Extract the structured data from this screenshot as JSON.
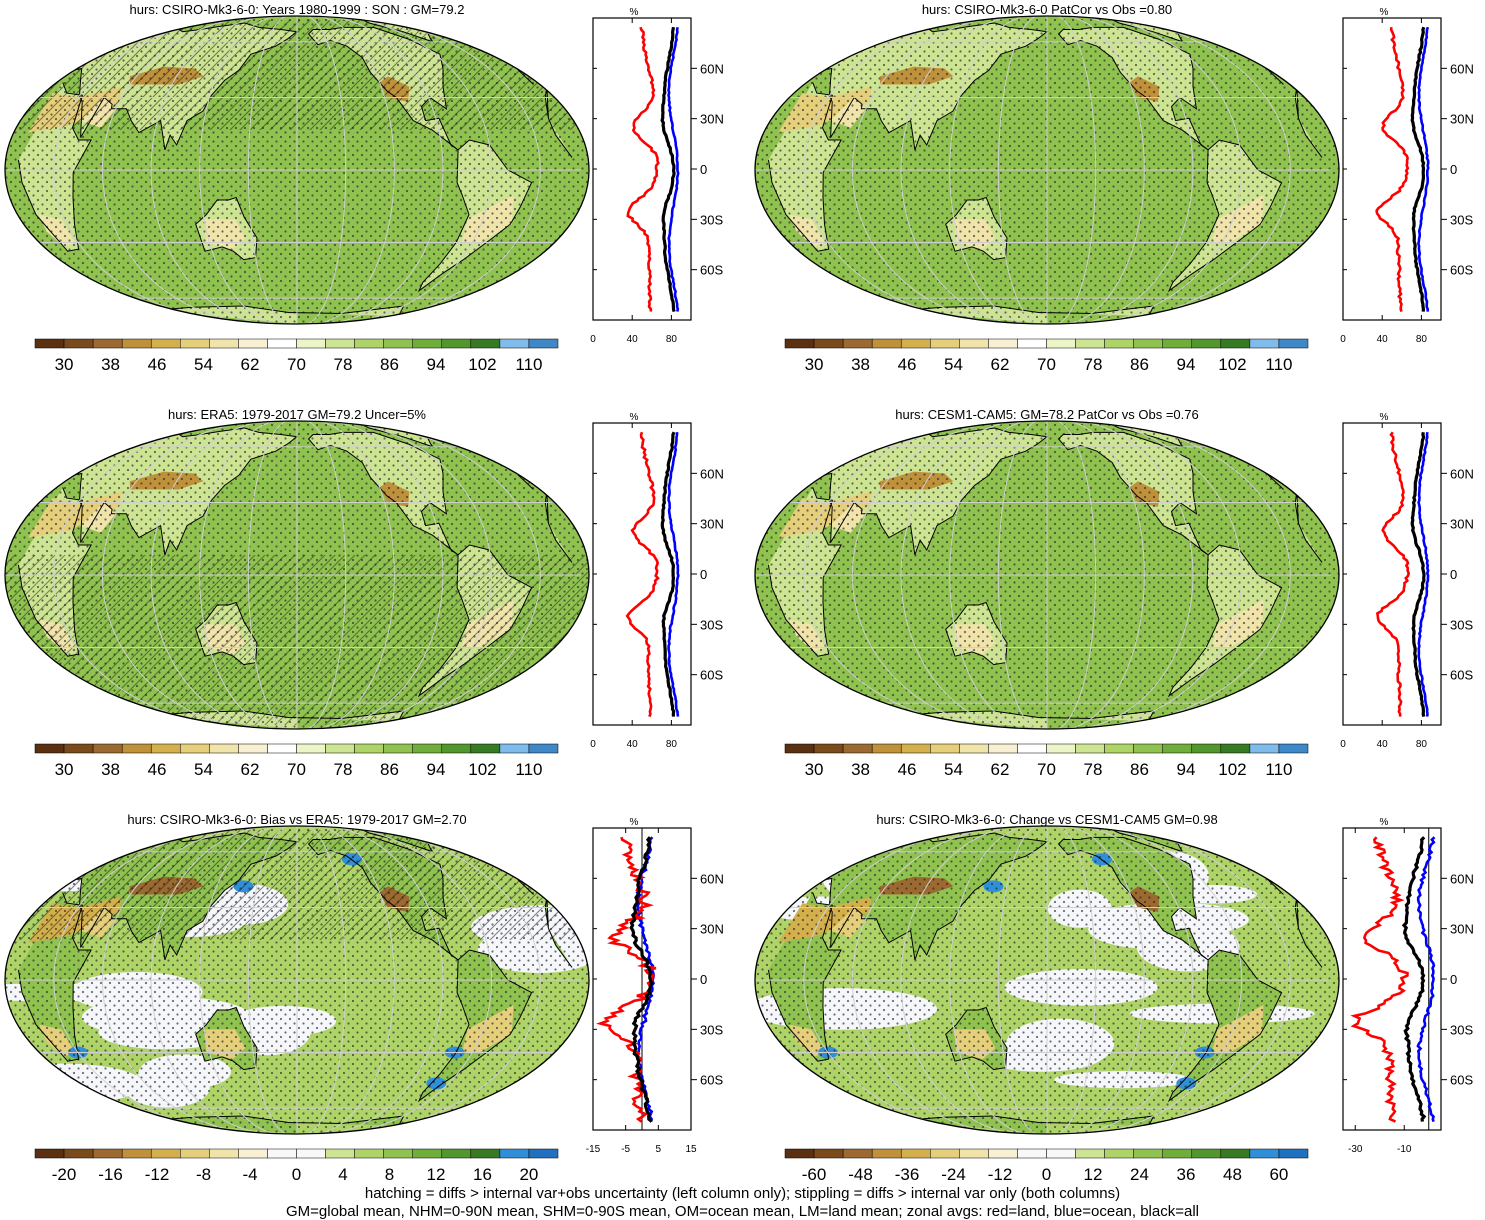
{
  "footer": {
    "line1": "hatching = diffs > internal var+obs uncertainty (left column only); stippling = diffs > internal var only (both columns)",
    "line2": "GM=global mean, NHM=0-90N mean, SHM=0-90S mean, OM=ocean mean, LM=land mean; zonal avgs: red=land, blue=ocean, black=all"
  },
  "zonal_legend": {
    "land": "red",
    "ocean": "blue",
    "all": "black"
  },
  "lat_ticks": [
    "60N",
    "30N",
    "0",
    "30S",
    "60S"
  ],
  "zonal_unit": "%",
  "palettes": {
    "humidity": [
      "#5a3010",
      "#7b4a1c",
      "#9c6a30",
      "#c0913b",
      "#d4b04c",
      "#e6cf7a",
      "#f1e4aa",
      "#f7f0d2",
      "#ffffff",
      "#ecf5c8",
      "#cde592",
      "#aed468",
      "#8fc24f",
      "#70ae3b",
      "#52962e",
      "#377a24",
      "#7fbcec",
      "#3f88c8"
    ],
    "difference": [
      "#5a3010",
      "#7b4a1c",
      "#9c6a30",
      "#c0913b",
      "#d4b04c",
      "#e6cf7a",
      "#f1e4aa",
      "#f7f0d2",
      "#f8f8fb",
      "#f8f8fb",
      "#cde592",
      "#aed468",
      "#8fc24f",
      "#70ae3b",
      "#52962e",
      "#377a24",
      "#2f8fd8",
      "#1f70c0"
    ]
  },
  "panels": [
    {
      "title": "hurs: CSIRO-Mk3-6-0: Years 1980-1999 : SON : GM=79.2",
      "colorbar_labels": [
        "30",
        "38",
        "46",
        "54",
        "62",
        "70",
        "78",
        "86",
        "94",
        "102",
        "110"
      ],
      "palette": "humidity",
      "zonal_xticks": [
        "0",
        "40",
        "80"
      ]
    },
    {
      "title": "hurs: CSIRO-Mk3-6-0 PatCor vs Obs =0.80",
      "colorbar_labels": [
        "30",
        "38",
        "46",
        "54",
        "62",
        "70",
        "78",
        "86",
        "94",
        "102",
        "110"
      ],
      "palette": "humidity",
      "zonal_xticks": [
        "0",
        "40",
        "80"
      ]
    },
    {
      "title": "hurs: ERA5: 1979-2017 GM=79.2 Uncer=5%",
      "colorbar_labels": [
        "30",
        "38",
        "46",
        "54",
        "62",
        "70",
        "78",
        "86",
        "94",
        "102",
        "110"
      ],
      "palette": "humidity",
      "zonal_xticks": [
        "0",
        "40",
        "80"
      ]
    },
    {
      "title": "hurs: CESM1-CAM5: GM=78.2 PatCor vs Obs =0.76",
      "colorbar_labels": [
        "30",
        "38",
        "46",
        "54",
        "62",
        "70",
        "78",
        "86",
        "94",
        "102",
        "110"
      ],
      "palette": "humidity",
      "zonal_xticks": [
        "0",
        "40",
        "80"
      ]
    },
    {
      "title": "hurs: CSIRO-Mk3-6-0: Bias vs ERA5: 1979-2017  GM=2.70",
      "colorbar_labels": [
        "-20",
        "-16",
        "-12",
        "-8",
        "-4",
        "0",
        "4",
        "8",
        "12",
        "16",
        "20"
      ],
      "palette": "difference",
      "zonal_xticks": [
        "-15",
        "-5",
        "5",
        "15"
      ]
    },
    {
      "title": "hurs: CSIRO-Mk3-6-0: Change vs CESM1-CAM5 GM=0.98",
      "colorbar_labels": [
        "-60",
        "-48",
        "-36",
        "-24",
        "-12",
        "0",
        "12",
        "24",
        "36",
        "48",
        "60"
      ],
      "palette": "difference",
      "zonal_xticks": [
        "-30",
        "-10"
      ]
    }
  ]
}
